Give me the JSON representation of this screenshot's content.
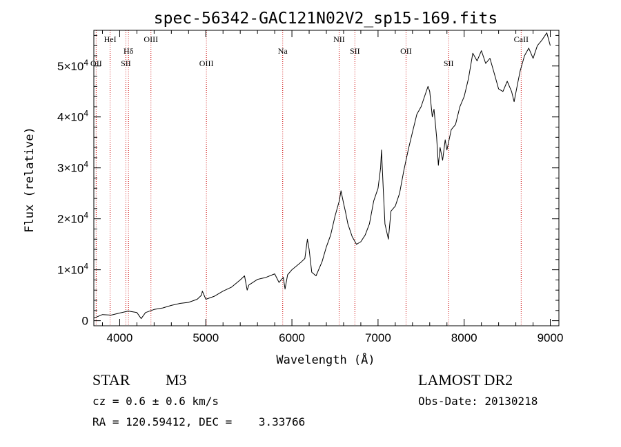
{
  "chart_data": {
    "type": "line",
    "title": "spec-56342-GAC121N02V2_sp15-169.fits",
    "xlabel": "Wavelength (Å)",
    "ylabel": "Flux (relative)",
    "xlim": [
      3700,
      9100
    ],
    "ylim": [
      -1000,
      57000
    ],
    "x_ticks": [
      4000,
      5000,
      6000,
      7000,
      8000,
      9000
    ],
    "x_tick_labels": [
      "4000",
      "5000",
      "6000",
      "7000",
      "8000",
      "9000"
    ],
    "y_ticks": [
      0,
      10000,
      20000,
      30000,
      40000,
      50000
    ],
    "y_tick_labels": [
      {
        "mant": "0",
        "exp": ""
      },
      {
        "mant": "1×10",
        "exp": "4"
      },
      {
        "mant": "2×10",
        "exp": "4"
      },
      {
        "mant": "3×10",
        "exp": "4"
      },
      {
        "mant": "4×10",
        "exp": "4"
      },
      {
        "mant": "5×10",
        "exp": "4"
      }
    ],
    "series": [
      {
        "points": [
          [
            3700,
            500
          ],
          [
            3800,
            1200
          ],
          [
            3900,
            1100
          ],
          [
            4000,
            1500
          ],
          [
            4100,
            1900
          ],
          [
            4200,
            1600
          ],
          [
            4250,
            400
          ],
          [
            4300,
            1600
          ],
          [
            4400,
            2200
          ],
          [
            4500,
            2500
          ],
          [
            4600,
            3000
          ],
          [
            4700,
            3400
          ],
          [
            4800,
            3600
          ],
          [
            4900,
            4200
          ],
          [
            4950,
            5000
          ],
          [
            4960,
            5800
          ],
          [
            5000,
            4200
          ],
          [
            5100,
            4800
          ],
          [
            5200,
            5800
          ],
          [
            5300,
            6600
          ],
          [
            5400,
            8000
          ],
          [
            5450,
            8800
          ],
          [
            5480,
            6000
          ],
          [
            5500,
            7000
          ],
          [
            5600,
            8100
          ],
          [
            5700,
            8500
          ],
          [
            5800,
            9200
          ],
          [
            5850,
            7500
          ],
          [
            5900,
            8500
          ],
          [
            5920,
            6200
          ],
          [
            5950,
            9000
          ],
          [
            6000,
            10000
          ],
          [
            6100,
            11400
          ],
          [
            6150,
            12200
          ],
          [
            6180,
            16000
          ],
          [
            6200,
            14000
          ],
          [
            6230,
            9500
          ],
          [
            6280,
            8800
          ],
          [
            6350,
            11600
          ],
          [
            6400,
            14500
          ],
          [
            6450,
            16800
          ],
          [
            6500,
            20500
          ],
          [
            6550,
            23500
          ],
          [
            6570,
            25500
          ],
          [
            6600,
            23000
          ],
          [
            6620,
            21500
          ],
          [
            6650,
            19000
          ],
          [
            6700,
            16500
          ],
          [
            6750,
            15000
          ],
          [
            6800,
            15500
          ],
          [
            6850,
            16800
          ],
          [
            6900,
            19000
          ],
          [
            6950,
            23500
          ],
          [
            7000,
            26000
          ],
          [
            7030,
            30000
          ],
          [
            7040,
            33500
          ],
          [
            7060,
            26000
          ],
          [
            7080,
            19000
          ],
          [
            7120,
            16000
          ],
          [
            7150,
            21500
          ],
          [
            7200,
            22500
          ],
          [
            7250,
            25000
          ],
          [
            7300,
            29500
          ],
          [
            7350,
            33500
          ],
          [
            7400,
            37000
          ],
          [
            7450,
            40500
          ],
          [
            7500,
            42000
          ],
          [
            7550,
            44500
          ],
          [
            7580,
            46000
          ],
          [
            7600,
            45000
          ],
          [
            7630,
            40000
          ],
          [
            7650,
            41500
          ],
          [
            7680,
            36000
          ],
          [
            7700,
            30500
          ],
          [
            7720,
            34000
          ],
          [
            7750,
            31500
          ],
          [
            7780,
            35500
          ],
          [
            7800,
            33500
          ],
          [
            7850,
            37500
          ],
          [
            7900,
            38500
          ],
          [
            7950,
            42000
          ],
          [
            8000,
            44000
          ],
          [
            8050,
            47500
          ],
          [
            8100,
            52500
          ],
          [
            8150,
            51000
          ],
          [
            8200,
            53000
          ],
          [
            8250,
            50500
          ],
          [
            8300,
            51500
          ],
          [
            8350,
            48500
          ],
          [
            8400,
            45500
          ],
          [
            8450,
            45000
          ],
          [
            8500,
            47000
          ],
          [
            8550,
            45000
          ],
          [
            8580,
            43000
          ],
          [
            8620,
            46500
          ],
          [
            8650,
            49000
          ],
          [
            8700,
            52000
          ],
          [
            8750,
            53500
          ],
          [
            8800,
            51500
          ],
          [
            8850,
            54000
          ],
          [
            8900,
            55000
          ],
          [
            8960,
            56500
          ],
          [
            9000,
            54000
          ]
        ]
      }
    ],
    "lines": [
      {
        "wl": 3889,
        "label": "HeI",
        "row": "top"
      },
      {
        "wl": 3727,
        "label": "OII",
        "row": "low"
      },
      {
        "wl": 4102,
        "label": "Hδ",
        "row": "mid"
      },
      {
        "wl": 4072,
        "label": "SII",
        "row": "low"
      },
      {
        "wl": 4363,
        "label": "OIII",
        "row": "top"
      },
      {
        "wl": 5007,
        "label": "OIII",
        "row": "low"
      },
      {
        "wl": 5893,
        "label": "Na",
        "row": "mid"
      },
      {
        "wl": 6548,
        "label": "NII",
        "row": "top"
      },
      {
        "wl": 6731,
        "label": "SII",
        "row": "mid"
      },
      {
        "wl": 7325,
        "label": "OII",
        "row": "mid"
      },
      {
        "wl": 7820,
        "label": "SII",
        "row": "low"
      },
      {
        "wl": 8662,
        "label": "CaII",
        "row": "top"
      }
    ],
    "grid": false,
    "legend": "none"
  },
  "info": {
    "object_class": "STAR",
    "subclass": "M3",
    "survey": "LAMOST DR2",
    "cz": "cz = 0.6 ± 0.6 km/s",
    "obs_date": "Obs-Date: 20130218",
    "coords": "RA = 120.59412, DEC =    3.33766"
  },
  "colors": {
    "axis": "#000000",
    "spectrum": "#000000",
    "line_marker": "#cc0000"
  }
}
